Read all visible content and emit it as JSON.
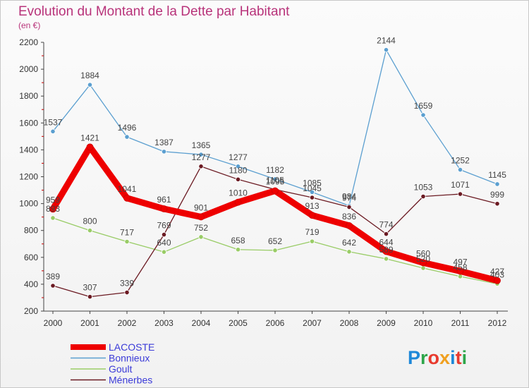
{
  "chart_data": {
    "type": "line",
    "title": "Evolution du Montant de la Dette par Habitant",
    "subtitle": "(en €)",
    "categories": [
      "2000",
      "2001",
      "2002",
      "2003",
      "2004",
      "2005",
      "2006",
      "2007",
      "2008",
      "2009",
      "2010",
      "2011",
      "2012"
    ],
    "ylim": [
      200,
      2200
    ],
    "yticks": [
      200,
      400,
      600,
      800,
      1000,
      1200,
      1400,
      1600,
      1800,
      2000,
      2200
    ],
    "grid": false,
    "legend_position": "bottom-left",
    "series": [
      {
        "name": "LACOSTE",
        "color": "#ee0000",
        "width": 9,
        "values": [
          959,
          1421,
          1041,
          961,
          901,
          1010,
          1095,
          913,
          836,
          644,
          560,
          497,
          427
        ]
      },
      {
        "name": "Bonnieux",
        "color": "#5b9fd0",
        "width": 1.3,
        "values": [
          1537,
          1884,
          1496,
          1387,
          1365,
          1277,
          1182,
          1085,
          984,
          2144,
          1659,
          1252,
          1145
        ]
      },
      {
        "name": "Goult",
        "color": "#99cc66",
        "width": 1.3,
        "values": [
          893,
          800,
          717,
          640,
          752,
          658,
          652,
          719,
          642,
          589,
          520,
          458,
          403
        ]
      },
      {
        "name": "Ménerbes",
        "color": "#6b1a22",
        "width": 1.3,
        "values": [
          389,
          307,
          339,
          769,
          1277,
          1180,
          1105,
          1045,
          974,
          774,
          1053,
          1071,
          999
        ]
      }
    ]
  },
  "logo": {
    "text": "Proxiti",
    "letter_colors": [
      "#1e88d8",
      "#2ea64a",
      "#e83a2e",
      "#f0a020",
      "#1e88d8",
      "#e83a2e",
      "#2ea64a"
    ]
  }
}
